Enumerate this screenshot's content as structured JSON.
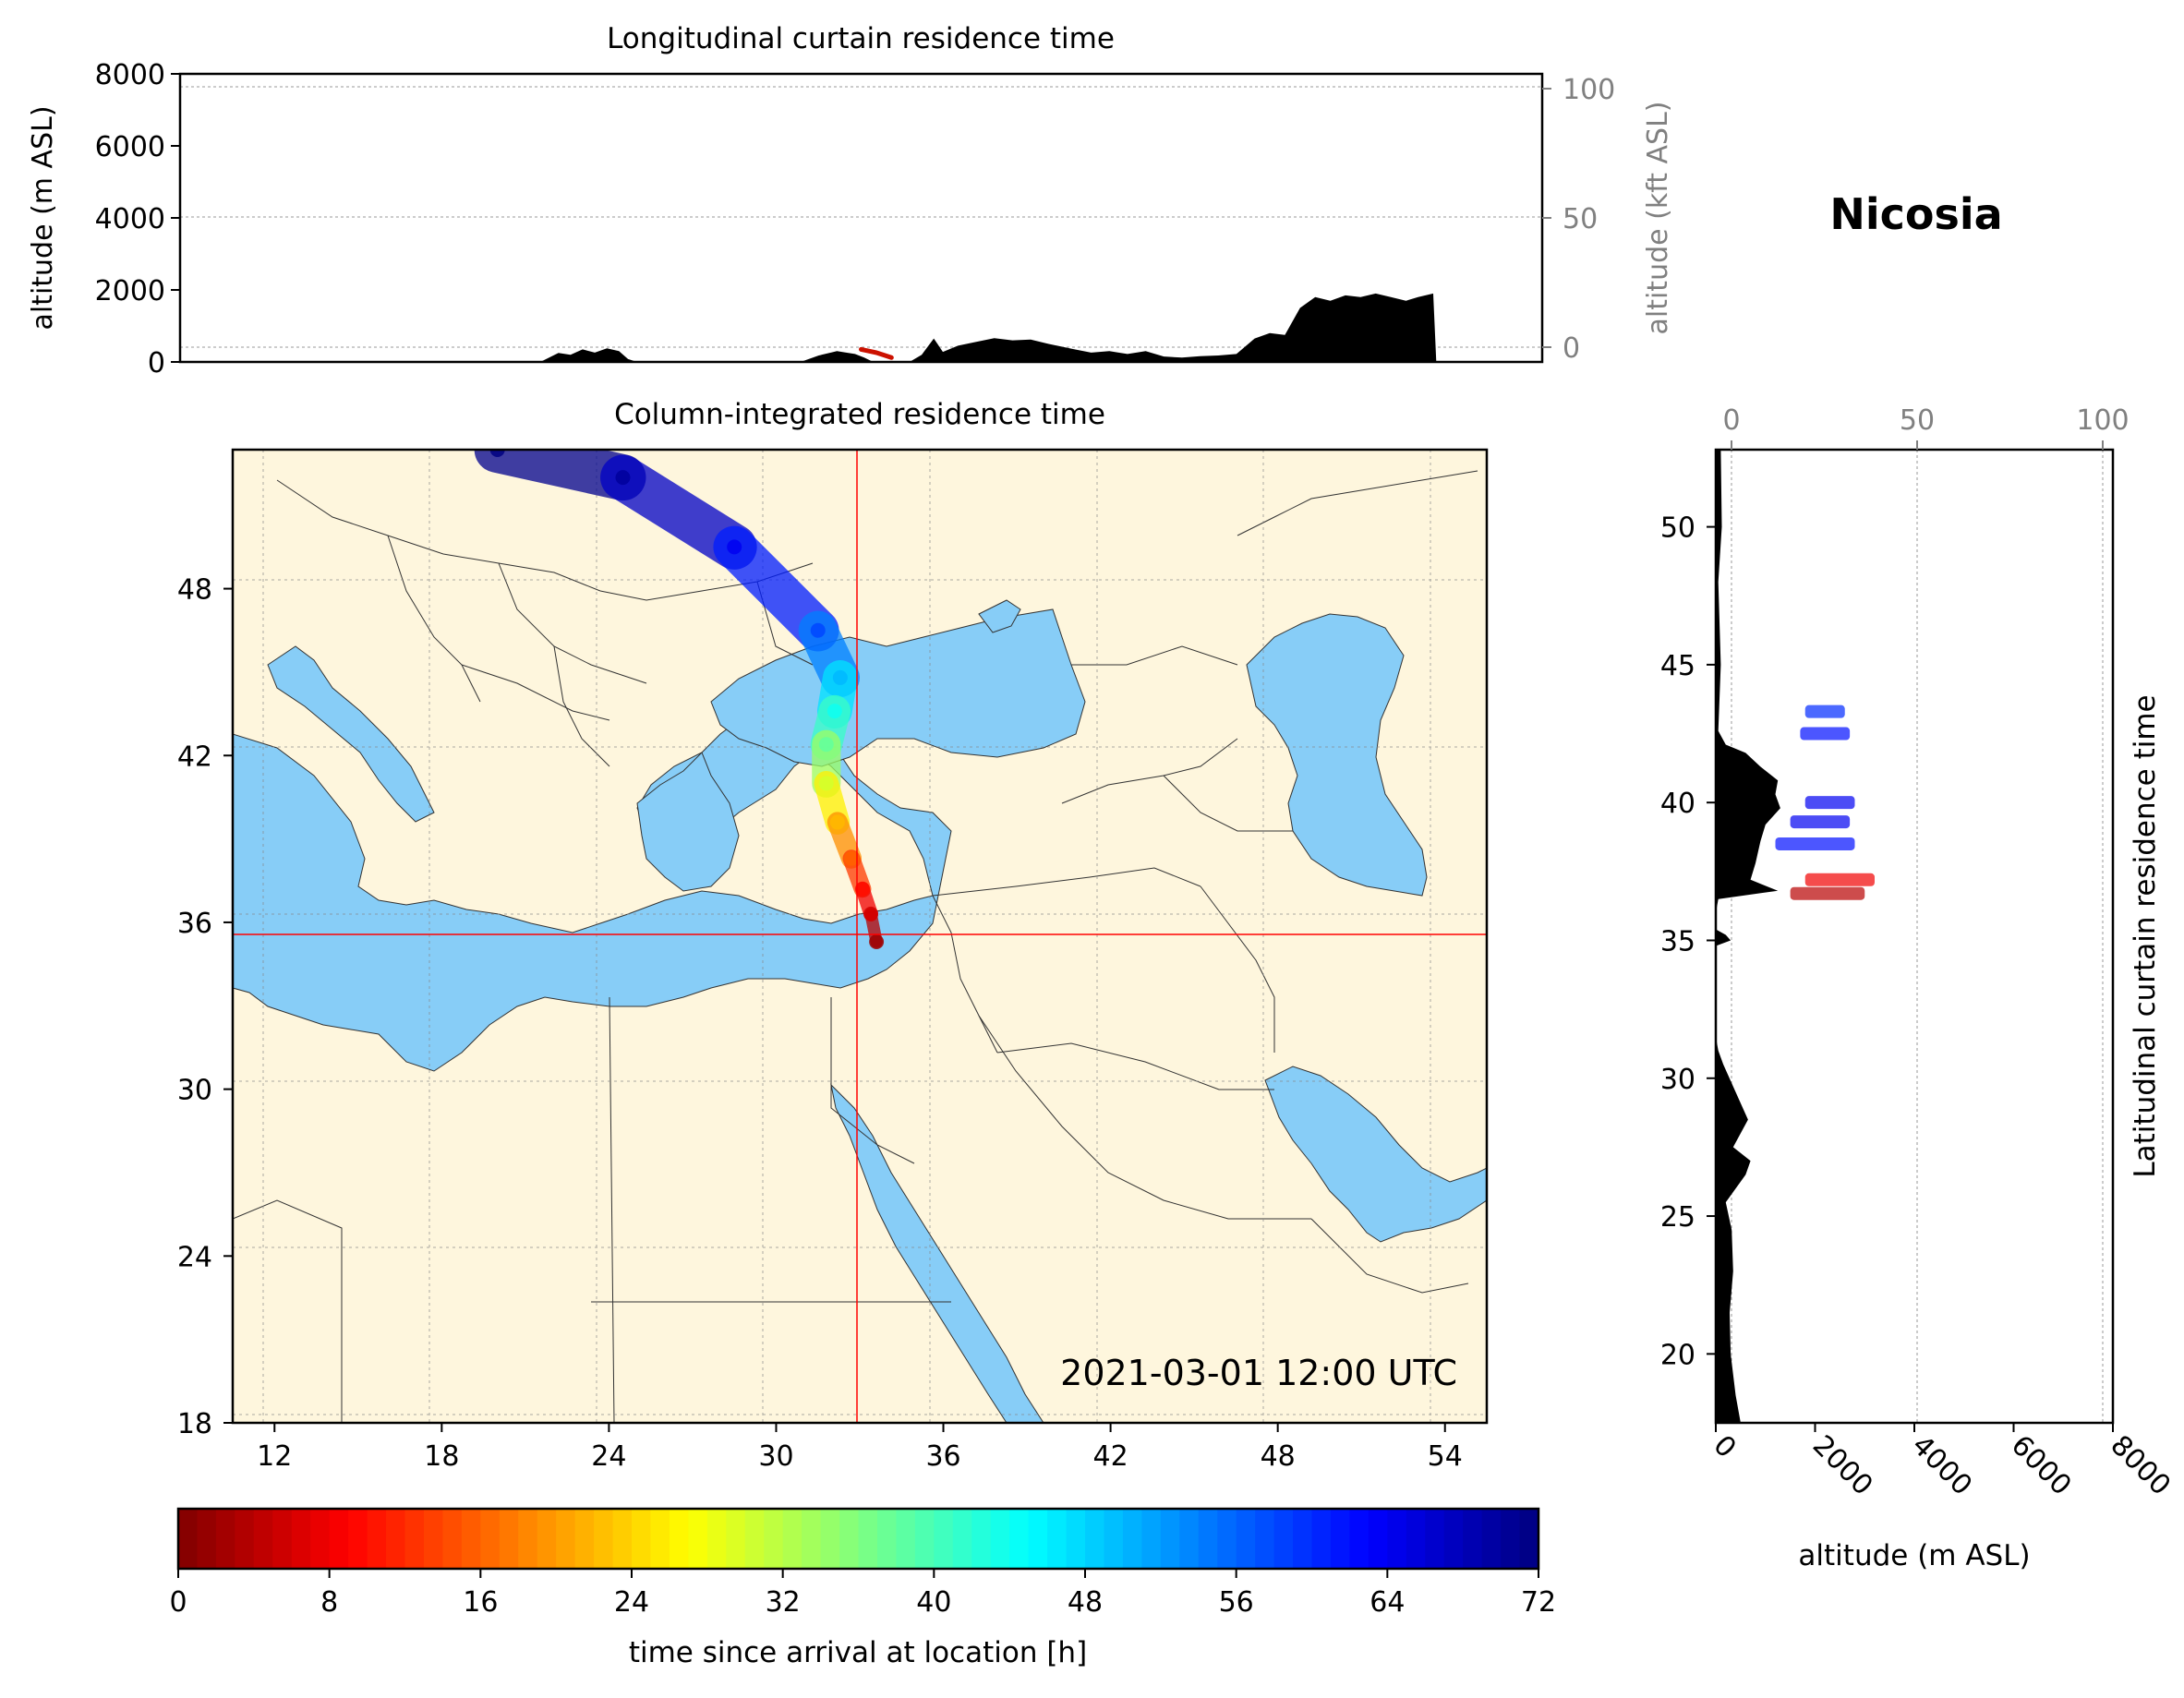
{
  "figure": {
    "station": "Nicosia",
    "timestamp": "2021-03-01 12:00 UTC"
  },
  "chart_data": [
    {
      "id": "longitudinal_curtain",
      "type": "area",
      "title": "Longitudinal curtain residence time",
      "xlabel": "",
      "ylabel": "altitude (m ASL)",
      "ylabel_right": "altitude (kft ASL)",
      "xlim": [
        10.5,
        55.5
      ],
      "ylim": [
        0,
        8000
      ],
      "yticks": [
        "0",
        "2000",
        "4000",
        "6000",
        "8000"
      ],
      "yticks_right": [
        "0",
        "50",
        "100"
      ],
      "grid": true,
      "terrain": {
        "name": "terrain",
        "color": "#000000",
        "x": [
          22.4,
          23.0,
          23.4,
          23.8,
          24.2,
          24.6,
          25.0,
          25.3,
          25.6,
          31.0,
          31.6,
          32.2,
          32.8,
          33.1,
          33.4,
          34.6,
          35.0,
          35.4,
          35.7,
          36.2,
          36.8,
          37.4,
          38.0,
          38.6,
          39.2,
          40.0,
          40.6,
          41.2,
          41.8,
          42.4,
          43.0,
          43.6,
          44.2,
          44.8,
          45.4,
          46.0,
          46.5,
          47.0,
          47.5,
          48.0,
          48.5,
          49.0,
          49.5,
          50.0,
          50.5,
          51.0,
          51.4,
          51.9,
          52.0
        ],
        "y": [
          0,
          250,
          200,
          350,
          260,
          380,
          300,
          80,
          0,
          0,
          180,
          300,
          220,
          120,
          0,
          0,
          200,
          650,
          280,
          450,
          560,
          660,
          600,
          620,
          500,
          360,
          260,
          300,
          220,
          300,
          150,
          120,
          160,
          180,
          220,
          650,
          800,
          750,
          1500,
          1800,
          1700,
          1850,
          1800,
          1900,
          1800,
          1700,
          1800,
          1900,
          0
        ]
      },
      "plume": {
        "name": "residence time",
        "x": [
          33.0,
          33.5,
          34.0
        ],
        "y": [
          350,
          260,
          120
        ],
        "color": "#cc1100"
      }
    },
    {
      "id": "column_integrated",
      "type": "heatmap",
      "title": "Column-integrated residence time",
      "xlim": [
        10.5,
        55.5
      ],
      "ylim": [
        18,
        53
      ],
      "xticks": [
        "12",
        "18",
        "24",
        "30",
        "36",
        "42",
        "48",
        "54"
      ],
      "yticks": [
        "18",
        "24",
        "30",
        "36",
        "42",
        "48"
      ],
      "grid": true,
      "release_location": {
        "lon": 33.35,
        "lat": 35.2
      },
      "land_color": "#fef6dd",
      "water_color": "#87cdf7",
      "plume_path": [
        {
          "lon": 33.6,
          "lat": 35.3,
          "hours": 2
        },
        {
          "lon": 33.4,
          "lat": 36.3,
          "hours": 6
        },
        {
          "lon": 33.1,
          "lat": 37.2,
          "hours": 10
        },
        {
          "lon": 32.7,
          "lat": 38.3,
          "hours": 16
        },
        {
          "lon": 32.2,
          "lat": 39.6,
          "hours": 22
        },
        {
          "lon": 31.8,
          "lat": 41.0,
          "hours": 30
        },
        {
          "lon": 31.8,
          "lat": 42.4,
          "hours": 38
        },
        {
          "lon": 32.1,
          "lat": 43.6,
          "hours": 44
        },
        {
          "lon": 32.3,
          "lat": 44.8,
          "hours": 50
        },
        {
          "lon": 31.5,
          "lat": 46.5,
          "hours": 58
        },
        {
          "lon": 28.5,
          "lat": 49.5,
          "hours": 64
        },
        {
          "lon": 24.5,
          "lat": 52.0,
          "hours": 70
        },
        {
          "lon": 20.0,
          "lat": 53.0,
          "hours": 72
        }
      ]
    },
    {
      "id": "latitudinal_curtain",
      "type": "area",
      "title": "Latitudinal curtain residence time",
      "xlabel": "altitude (m ASL)",
      "xlabel_top": "",
      "xlim": [
        0,
        8000
      ],
      "ylim": [
        17.5,
        52.8
      ],
      "xticks": [
        "0",
        "2000",
        "4000",
        "6000",
        "8000"
      ],
      "xticks_top": [
        "0",
        "50",
        "100"
      ],
      "yticks": [
        "20",
        "25",
        "30",
        "35",
        "40",
        "45",
        "50"
      ],
      "grid": true,
      "terrain": {
        "name": "terrain",
        "color": "#000000",
        "lat": [
          17.5,
          18.5,
          20.0,
          21.5,
          23.0,
          24.5,
          25.5,
          26.5,
          27.0,
          27.5,
          28.5,
          29.5,
          30.5,
          31.0,
          31.5,
          34.8,
          35.0,
          35.2,
          35.4,
          35.6,
          36.0,
          36.5,
          36.8,
          37.2,
          37.8,
          38.6,
          39.2,
          39.8,
          40.3,
          40.8,
          41.3,
          41.8,
          42.1,
          42.6,
          45.0,
          48.0,
          50.0,
          52.8
        ],
        "alt": [
          500,
          400,
          300,
          280,
          350,
          320,
          200,
          600,
          700,
          350,
          650,
          400,
          150,
          50,
          0,
          0,
          300,
          200,
          0,
          0,
          0,
          50,
          1250,
          700,
          800,
          900,
          1000,
          1300,
          1200,
          1250,
          900,
          600,
          200,
          50,
          100,
          50,
          120,
          100
        ]
      },
      "plume_blobs": [
        {
          "lat": 36.7,
          "alt_min": 1500,
          "alt_max": 3000,
          "hours": 4
        },
        {
          "lat": 37.2,
          "alt_min": 1800,
          "alt_max": 3200,
          "hours": 8
        },
        {
          "lat": 38.5,
          "alt_min": 1200,
          "alt_max": 2800,
          "hours": 62
        },
        {
          "lat": 39.3,
          "alt_min": 1500,
          "alt_max": 2700,
          "hours": 64
        },
        {
          "lat": 40.0,
          "alt_min": 1800,
          "alt_max": 2800,
          "hours": 64
        },
        {
          "lat": 42.5,
          "alt_min": 1700,
          "alt_max": 2700,
          "hours": 62
        },
        {
          "lat": 43.3,
          "alt_min": 1800,
          "alt_max": 2600,
          "hours": 60
        }
      ]
    }
  ],
  "colorbar": {
    "label": "time since arrival at location [h]",
    "range": [
      0,
      72
    ],
    "ticks": [
      "0",
      "8",
      "16",
      "24",
      "32",
      "40",
      "48",
      "56",
      "64",
      "72"
    ],
    "colormap": "jet_r"
  }
}
